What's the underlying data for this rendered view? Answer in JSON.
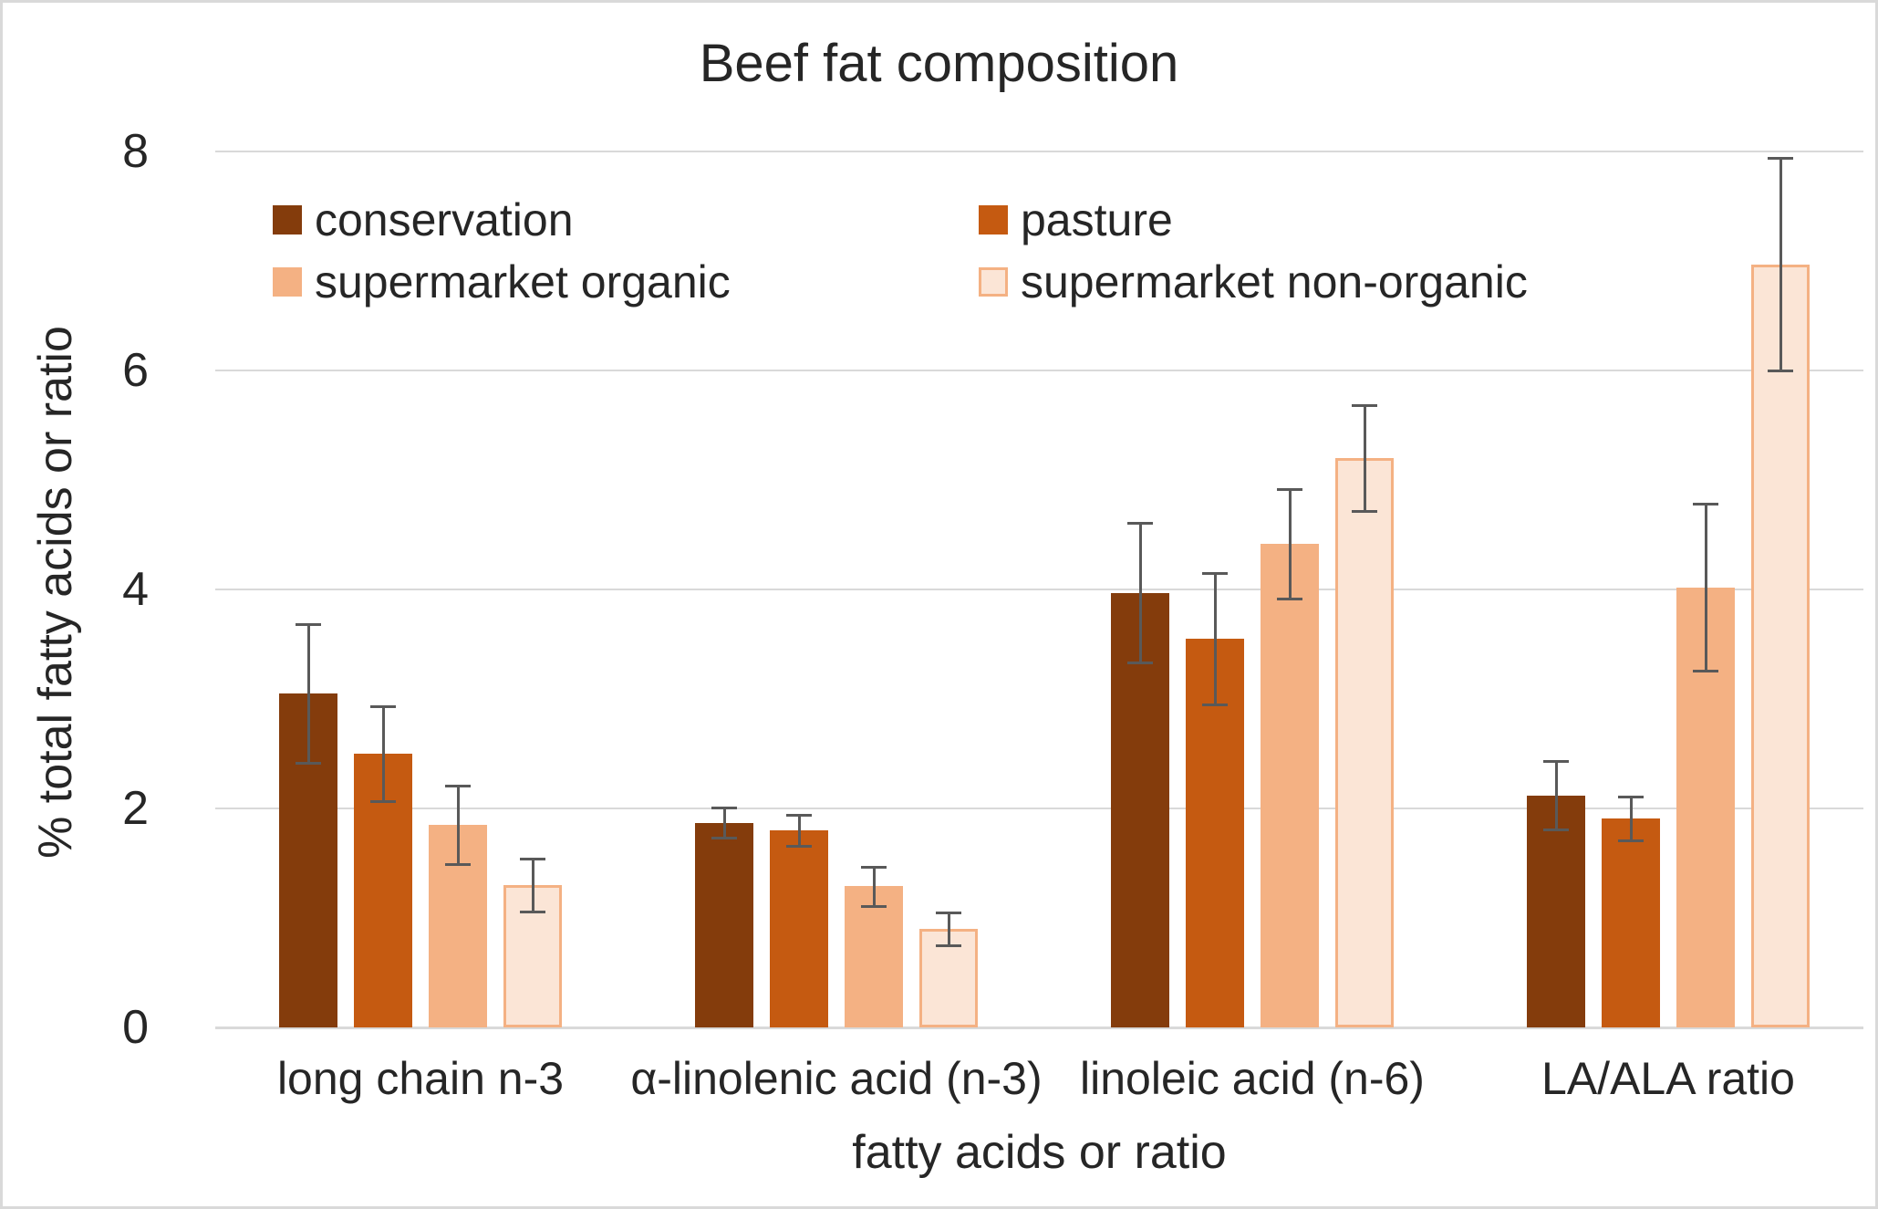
{
  "chart": {
    "title": "Beef fat composition",
    "y_axis_label": "% total fatty acids or ratio",
    "x_axis_label": "fatty acids or ratio"
  },
  "chart_data": {
    "type": "bar",
    "title": "Beef fat composition",
    "xlabel": "fatty acids or ratio",
    "ylabel": "% total fatty acids or ratio",
    "ylim": [
      0,
      8
    ],
    "yticks": [
      0,
      2,
      4,
      6,
      8
    ],
    "grid": true,
    "legend_position": "top-left-inside",
    "error_bars": true,
    "categories": [
      "long chain n-3",
      "α-linolenic acid (n-3)",
      "linoleic acid (n-6)",
      "LA/ALA ratio"
    ],
    "series": [
      {
        "name": "conservation",
        "color": "#843C0C",
        "values": [
          3.05,
          1.87,
          3.97,
          2.12
        ],
        "errors": [
          0.63,
          0.14,
          0.64,
          0.31
        ]
      },
      {
        "name": "pasture",
        "color": "#C55A11",
        "values": [
          2.5,
          1.8,
          3.55,
          1.91
        ],
        "errors": [
          0.43,
          0.14,
          0.6,
          0.2
        ]
      },
      {
        "name": "supermarket organic",
        "color": "#F4B183",
        "values": [
          1.85,
          1.29,
          4.42,
          4.02
        ],
        "errors": [
          0.36,
          0.18,
          0.5,
          0.76
        ]
      },
      {
        "name": "supermarket non-organic",
        "color": "#FBE5D6",
        "border_color": "#F4B183",
        "values": [
          1.3,
          0.9,
          5.2,
          6.97
        ],
        "errors": [
          0.24,
          0.15,
          0.48,
          0.97
        ]
      }
    ],
    "colors": {
      "gridline": "#D9D9D9",
      "error_bar": "#595959",
      "text": "#262626",
      "background": "#FFFFFF",
      "page_border": "#D9D9D9"
    }
  }
}
